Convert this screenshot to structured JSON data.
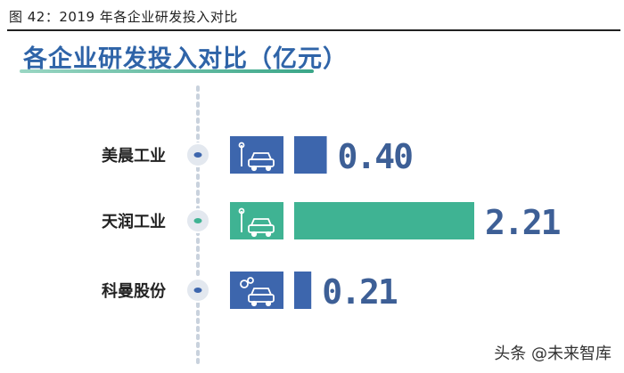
{
  "caption": "图 42：2019 年各企业研发投入对比",
  "watermark": "头条 @未来智库",
  "chart_data": {
    "type": "bar",
    "orientation": "horizontal",
    "title": "各企业研发投入对比（亿元）",
    "categories": [
      "美晨工业",
      "天润工业",
      "科曼股份"
    ],
    "values": [
      0.4,
      2.21,
      0.21
    ],
    "value_labels": [
      "0.40",
      "2.21",
      "0.21"
    ],
    "xlim": [
      0,
      2.21
    ],
    "grid": false,
    "colors": {
      "primary": "#3d66ad",
      "highlight": "#3fb393",
      "label": "#3d5f96"
    },
    "bar_colors": [
      "#3d66ad",
      "#3fb393",
      "#3d66ad"
    ],
    "icons": [
      "car-wrench-icon",
      "car-wrench-icon",
      "car-gear-icon"
    ]
  }
}
